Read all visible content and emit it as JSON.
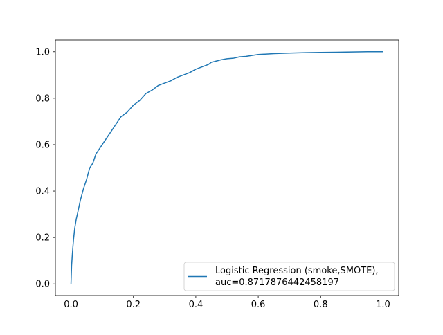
{
  "chart_data": {
    "type": "line",
    "title": "",
    "xlabel": "",
    "ylabel": "",
    "xlim": [
      -0.05,
      1.05
    ],
    "ylim": [
      -0.05,
      1.05
    ],
    "x_ticks": [
      "0.0",
      "0.2",
      "0.4",
      "0.6",
      "0.8",
      "1.0"
    ],
    "y_ticks": [
      "0.0",
      "0.2",
      "0.4",
      "0.6",
      "0.8",
      "1.0"
    ],
    "grid": false,
    "legend_location": "lower-right",
    "series": [
      {
        "name": "Logistic Regression (smoke,SMOTE),",
        "legend_line2": "auc=0.8717876442458197",
        "color": "#1f77b4",
        "x": [
          0.0,
          0.002,
          0.005,
          0.008,
          0.012,
          0.017,
          0.022,
          0.03,
          0.04,
          0.05,
          0.06,
          0.07,
          0.08,
          0.1,
          0.12,
          0.14,
          0.16,
          0.18,
          0.2,
          0.22,
          0.24,
          0.26,
          0.28,
          0.3,
          0.32,
          0.34,
          0.36,
          0.38,
          0.4,
          0.42,
          0.44,
          0.45,
          0.46,
          0.48,
          0.5,
          0.52,
          0.54,
          0.56,
          0.58,
          0.6,
          0.65,
          0.7,
          0.75,
          0.8,
          0.85,
          0.9,
          0.95,
          1.0
        ],
        "y": [
          0.0,
          0.08,
          0.14,
          0.19,
          0.24,
          0.28,
          0.31,
          0.36,
          0.41,
          0.45,
          0.5,
          0.52,
          0.56,
          0.6,
          0.64,
          0.68,
          0.72,
          0.74,
          0.77,
          0.79,
          0.82,
          0.835,
          0.855,
          0.865,
          0.875,
          0.89,
          0.9,
          0.91,
          0.925,
          0.935,
          0.945,
          0.955,
          0.958,
          0.965,
          0.97,
          0.972,
          0.978,
          0.98,
          0.984,
          0.988,
          0.992,
          0.994,
          0.996,
          0.997,
          0.998,
          0.999,
          1.0,
          1.0
        ]
      }
    ]
  }
}
